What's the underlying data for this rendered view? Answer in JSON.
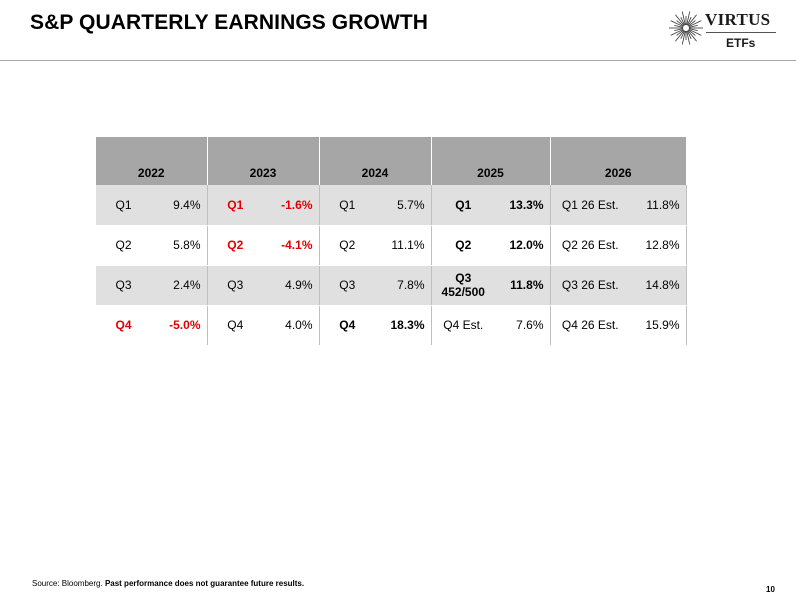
{
  "title": "S&P QUARTERLY EARNINGS GROWTH",
  "logo": {
    "brand": "VIRTUS",
    "sub": "ETFs",
    "icon": "sunburst-logo-icon"
  },
  "table": {
    "years": [
      "2022",
      "2023",
      "2024",
      "2025",
      "2026"
    ],
    "rows": [
      [
        {
          "q": "Q1",
          "v": "9.4%",
          "style": ""
        },
        {
          "q": "Q1",
          "v": "-1.6%",
          "style": "red"
        },
        {
          "q": "Q1",
          "v": "5.7%",
          "style": ""
        },
        {
          "q": "Q1",
          "v": "13.3%",
          "style": "bold"
        },
        {
          "q": "Q1 26 Est.",
          "v": "11.8%",
          "style": ""
        }
      ],
      [
        {
          "q": "Q2",
          "v": "5.8%",
          "style": ""
        },
        {
          "q": "Q2",
          "v": "-4.1%",
          "style": "red"
        },
        {
          "q": "Q2",
          "v": "11.1%",
          "style": ""
        },
        {
          "q": "Q2",
          "v": "12.0%",
          "style": "bold"
        },
        {
          "q": "Q2 26 Est.",
          "v": "12.8%",
          "style": ""
        }
      ],
      [
        {
          "q": "Q3",
          "v": "2.4%",
          "style": ""
        },
        {
          "q": "Q3",
          "v": "4.9%",
          "style": ""
        },
        {
          "q": "Q3",
          "v": "7.8%",
          "style": ""
        },
        {
          "q": "Q3\n452/500",
          "v": "11.8%",
          "style": "bold"
        },
        {
          "q": "Q3 26 Est.",
          "v": "14.8%",
          "style": ""
        }
      ],
      [
        {
          "q": "Q4",
          "v": "-5.0%",
          "style": "red"
        },
        {
          "q": "Q4",
          "v": "4.0%",
          "style": ""
        },
        {
          "q": "Q4",
          "v": "18.3%",
          "style": "bold"
        },
        {
          "q": "Q4  Est.",
          "v": "7.6%",
          "style": ""
        },
        {
          "q": "Q4 26 Est.",
          "v": "15.9%",
          "style": ""
        }
      ]
    ]
  },
  "footer": {
    "source_prefix": "Source: Bloomberg. ",
    "source_bold": "Past performance does not guarantee future results.",
    "page_number": "10"
  },
  "colors": {
    "header_gray": "#a6a6a6",
    "band_gray": "#e0e0e0",
    "negative_red": "#e00000"
  }
}
